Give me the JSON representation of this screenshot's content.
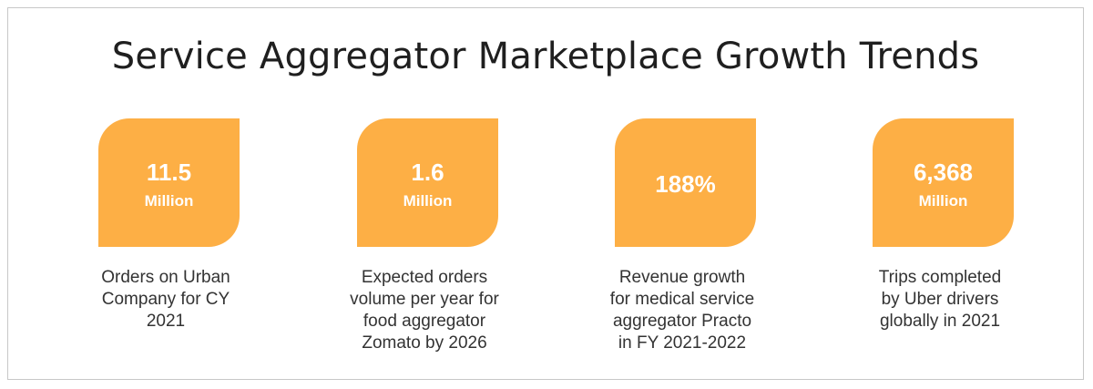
{
  "title": "Service Aggregator Marketplace Growth Trends",
  "stats": [
    {
      "value": "11.5",
      "unit": "Million",
      "description": [
        "Orders on Urban",
        "Company for CY",
        "2021"
      ]
    },
    {
      "value": "1.6",
      "unit": "Million",
      "description": [
        "Expected orders",
        "volume per year for",
        "food aggregator",
        "Zomato by 2026"
      ]
    },
    {
      "value": "188%",
      "unit": "",
      "description": [
        "Revenue growth",
        "for medical service",
        "aggregator Practo",
        "in FY 2021-2022"
      ]
    },
    {
      "value": "6,368",
      "unit": "Million",
      "description": [
        "Trips completed",
        "by Uber drivers",
        "globally in 2021"
      ]
    }
  ],
  "colors": {
    "badge": "#fdaf45",
    "badge_text": "#ffffff",
    "title_text": "#1f1f1f",
    "body_text": "#333333",
    "border": "#c8c8c8"
  }
}
